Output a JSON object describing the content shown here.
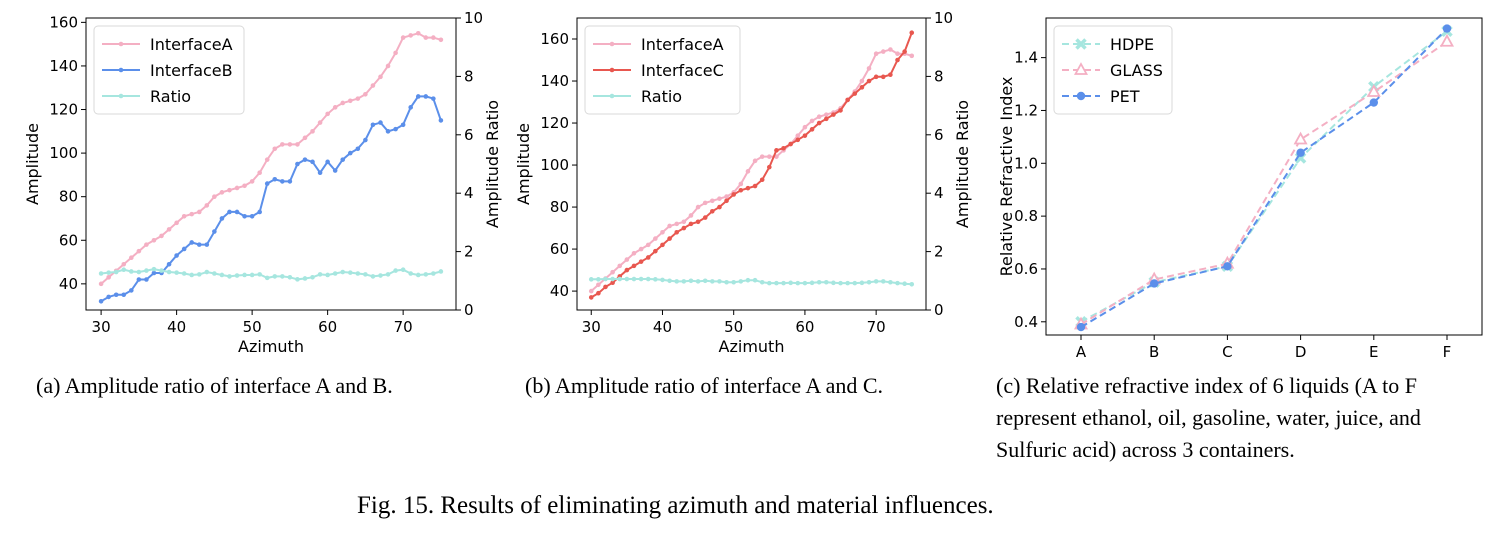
{
  "figure_caption": "Fig. 15.  Results of eliminating azimuth and material influences.",
  "subcaptions": [
    "(a)  Amplitude ratio of interface A and B.",
    "(b)  Amplitude ratio of interface A and C.",
    "(c)  Relative refractive index of 6 liquids (A to F represent ethanol, oil, gasoline, water, juice, and Sulfuric acid) across 3 containers."
  ],
  "colors": {
    "pink": "#f4afc3",
    "blue": "#5b8fea",
    "teal": "#a6e6df",
    "red": "#e8574f"
  },
  "chart_data": [
    {
      "type": "line",
      "xlabel": "Azimuth",
      "ylabel": "Amplitude",
      "y2label": "Amplitude Ratio",
      "xlim": [
        28,
        77
      ],
      "ylim": [
        28,
        162
      ],
      "y2lim": [
        0,
        10
      ],
      "xticks": [
        "30",
        "40",
        "50",
        "60",
        "70"
      ],
      "yticks": [
        "40",
        "60",
        "80",
        "100",
        "120",
        "140",
        "160"
      ],
      "y2ticks": [
        "0",
        "2",
        "4",
        "6",
        "8",
        "10"
      ],
      "legend": "top-left",
      "x": [
        30,
        31,
        32,
        33,
        34,
        35,
        36,
        37,
        38,
        39,
        40,
        41,
        42,
        43,
        44,
        45,
        46,
        47,
        48,
        49,
        50,
        51,
        52,
        53,
        54,
        55,
        56,
        57,
        58,
        59,
        60,
        61,
        62,
        63,
        64,
        65,
        66,
        67,
        68,
        69,
        70,
        71,
        72,
        73,
        74,
        75
      ],
      "series": [
        {
          "name": "InterfaceA",
          "color": "#f4afc3",
          "axis": "left",
          "values": [
            40,
            43,
            46,
            49,
            52,
            55,
            58,
            60,
            62,
            65,
            68,
            71,
            72,
            73,
            76,
            80,
            82,
            83,
            84,
            85,
            87,
            91,
            97,
            102,
            104,
            104,
            104,
            107,
            110,
            114,
            118,
            121,
            123,
            124,
            125,
            127,
            131,
            135,
            140,
            146,
            153,
            154,
            155,
            153,
            153,
            152
          ]
        },
        {
          "name": "InterfaceB",
          "color": "#5b8fea",
          "axis": "left",
          "values": [
            32,
            34,
            35,
            35,
            37,
            42,
            42,
            45,
            45,
            49,
            53,
            56,
            59,
            58,
            58,
            64,
            70,
            73,
            73,
            71,
            71,
            73,
            86,
            88,
            87,
            87,
            95,
            97,
            96,
            91,
            96,
            92,
            97,
            100,
            102,
            106,
            113,
            114,
            110,
            111,
            113,
            121,
            126,
            126,
            125,
            115
          ]
        },
        {
          "name": "Ratio",
          "color": "#a6e6df",
          "axis": "right",
          "values": [
            1.25,
            1.28,
            1.3,
            1.38,
            1.32,
            1.3,
            1.35,
            1.4,
            1.35,
            1.3,
            1.28,
            1.25,
            1.2,
            1.22,
            1.3,
            1.25,
            1.2,
            1.15,
            1.18,
            1.2,
            1.2,
            1.22,
            1.1,
            1.15,
            1.15,
            1.12,
            1.05,
            1.08,
            1.12,
            1.22,
            1.2,
            1.25,
            1.3,
            1.28,
            1.25,
            1.22,
            1.15,
            1.18,
            1.22,
            1.35,
            1.38,
            1.25,
            1.2,
            1.22,
            1.25,
            1.32
          ]
        }
      ]
    },
    {
      "type": "line",
      "xlabel": "Azimuth",
      "ylabel": "Amplitude",
      "y2label": "Amplitude Ratio",
      "xlim": [
        28,
        77
      ],
      "ylim": [
        31,
        170
      ],
      "y2lim": [
        0,
        10
      ],
      "xticks": [
        "30",
        "40",
        "50",
        "60",
        "70"
      ],
      "yticks": [
        "40",
        "60",
        "80",
        "100",
        "120",
        "140",
        "160"
      ],
      "y2ticks": [
        "0",
        "2",
        "4",
        "6",
        "8",
        "10"
      ],
      "legend": "top-left",
      "x": [
        30,
        31,
        32,
        33,
        34,
        35,
        36,
        37,
        38,
        39,
        40,
        41,
        42,
        43,
        44,
        45,
        46,
        47,
        48,
        49,
        50,
        51,
        52,
        53,
        54,
        55,
        56,
        57,
        58,
        59,
        60,
        61,
        62,
        63,
        64,
        65,
        66,
        67,
        68,
        69,
        70,
        71,
        72,
        73,
        74,
        75
      ],
      "series": [
        {
          "name": "InterfaceA",
          "color": "#f4afc3",
          "axis": "left",
          "values": [
            40,
            43,
            46,
            49,
            52,
            55,
            58,
            60,
            62,
            65,
            68,
            71,
            72,
            73,
            76,
            80,
            82,
            83,
            84,
            85,
            87,
            91,
            97,
            102,
            104,
            104,
            104,
            107,
            110,
            114,
            118,
            121,
            123,
            124,
            125,
            127,
            131,
            135,
            140,
            146,
            153,
            154,
            155,
            153,
            153,
            152
          ]
        },
        {
          "name": "InterfaceC",
          "color": "#e8574f",
          "axis": "left",
          "values": [
            37,
            39,
            42,
            44,
            47,
            50,
            52,
            54,
            56,
            59,
            62,
            65,
            68,
            70,
            72,
            73,
            75,
            78,
            80,
            83,
            86,
            88,
            89,
            90,
            93,
            99,
            107,
            108,
            110,
            112,
            114,
            117,
            120,
            122,
            124,
            126,
            131,
            134,
            137,
            140,
            142,
            142,
            143,
            150,
            154,
            163
          ]
        },
        {
          "name": "Ratio",
          "color": "#a6e6df",
          "axis": "right",
          "values": [
            1.05,
            1.05,
            1.06,
            1.06,
            1.06,
            1.06,
            1.06,
            1.06,
            1.06,
            1.05,
            1.03,
            1.0,
            0.98,
            0.98,
            1.0,
            0.98,
            1.0,
            0.98,
            0.98,
            0.95,
            0.95,
            0.98,
            1.02,
            1.02,
            0.95,
            0.92,
            0.92,
            0.92,
            0.93,
            0.92,
            0.92,
            0.93,
            0.95,
            0.95,
            0.93,
            0.92,
            0.92,
            0.92,
            0.93,
            0.95,
            0.98,
            0.98,
            0.95,
            0.92,
            0.9,
            0.88
          ]
        }
      ]
    },
    {
      "type": "line",
      "ylabel": "Relative Refractive Index",
      "categories": [
        "A",
        "B",
        "C",
        "D",
        "E",
        "F"
      ],
      "ylim": [
        0.35,
        1.55
      ],
      "yticks": [
        "0.4",
        "0.6",
        "0.8",
        "1.0",
        "1.2",
        "1.4"
      ],
      "legend": "top-left",
      "series": [
        {
          "name": "HDPE",
          "color": "#a6e6df",
          "marker": "x",
          "values": [
            0.4,
            0.55,
            0.61,
            1.02,
            1.29,
            1.5
          ]
        },
        {
          "name": "GLASS",
          "color": "#f4afc3",
          "marker": "triangle",
          "values": [
            0.39,
            0.56,
            0.62,
            1.09,
            1.27,
            1.46
          ]
        },
        {
          "name": "PET",
          "color": "#5b8fea",
          "marker": "circle",
          "values": [
            0.38,
            0.545,
            0.61,
            1.04,
            1.23,
            1.51
          ]
        }
      ]
    }
  ]
}
